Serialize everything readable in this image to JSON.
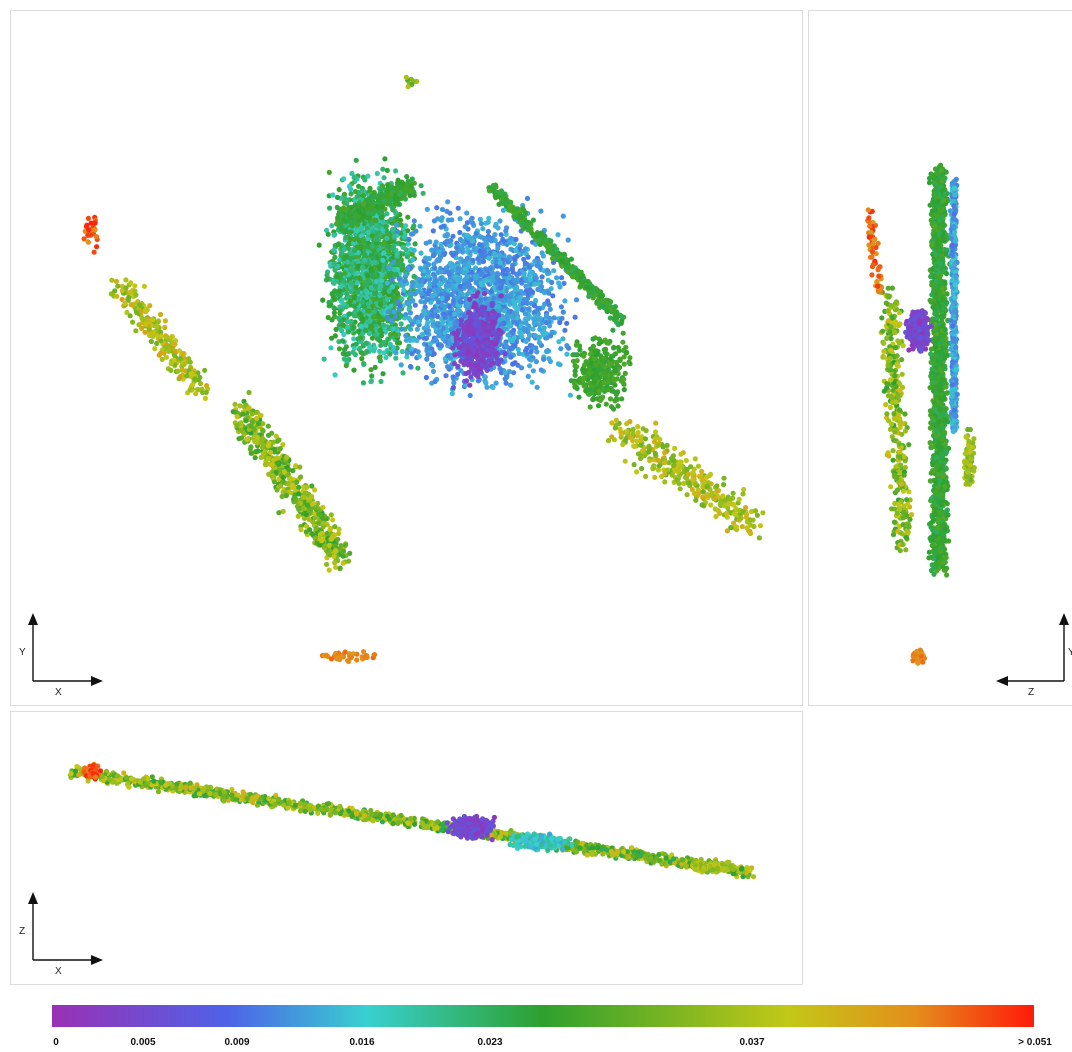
{
  "views": [
    {
      "id": "xy",
      "horizontal_axis": "X",
      "vertical_axis": "Y"
    },
    {
      "id": "zy",
      "horizontal_axis": "Z",
      "vertical_axis": "Y"
    },
    {
      "id": "xz",
      "horizontal_axis": "X",
      "vertical_axis": "Z"
    }
  ],
  "colorbar": {
    "ticks": [
      "0",
      "0.005",
      "0.009",
      "0.016",
      "0.023",
      "0.037",
      "> 0.051"
    ],
    "colors": [
      "#9a30b4",
      "#4e63e8",
      "#38d0d0",
      "#2ea02e",
      "#c2c817",
      "#e48d1c",
      "#ff1a0a"
    ]
  }
}
